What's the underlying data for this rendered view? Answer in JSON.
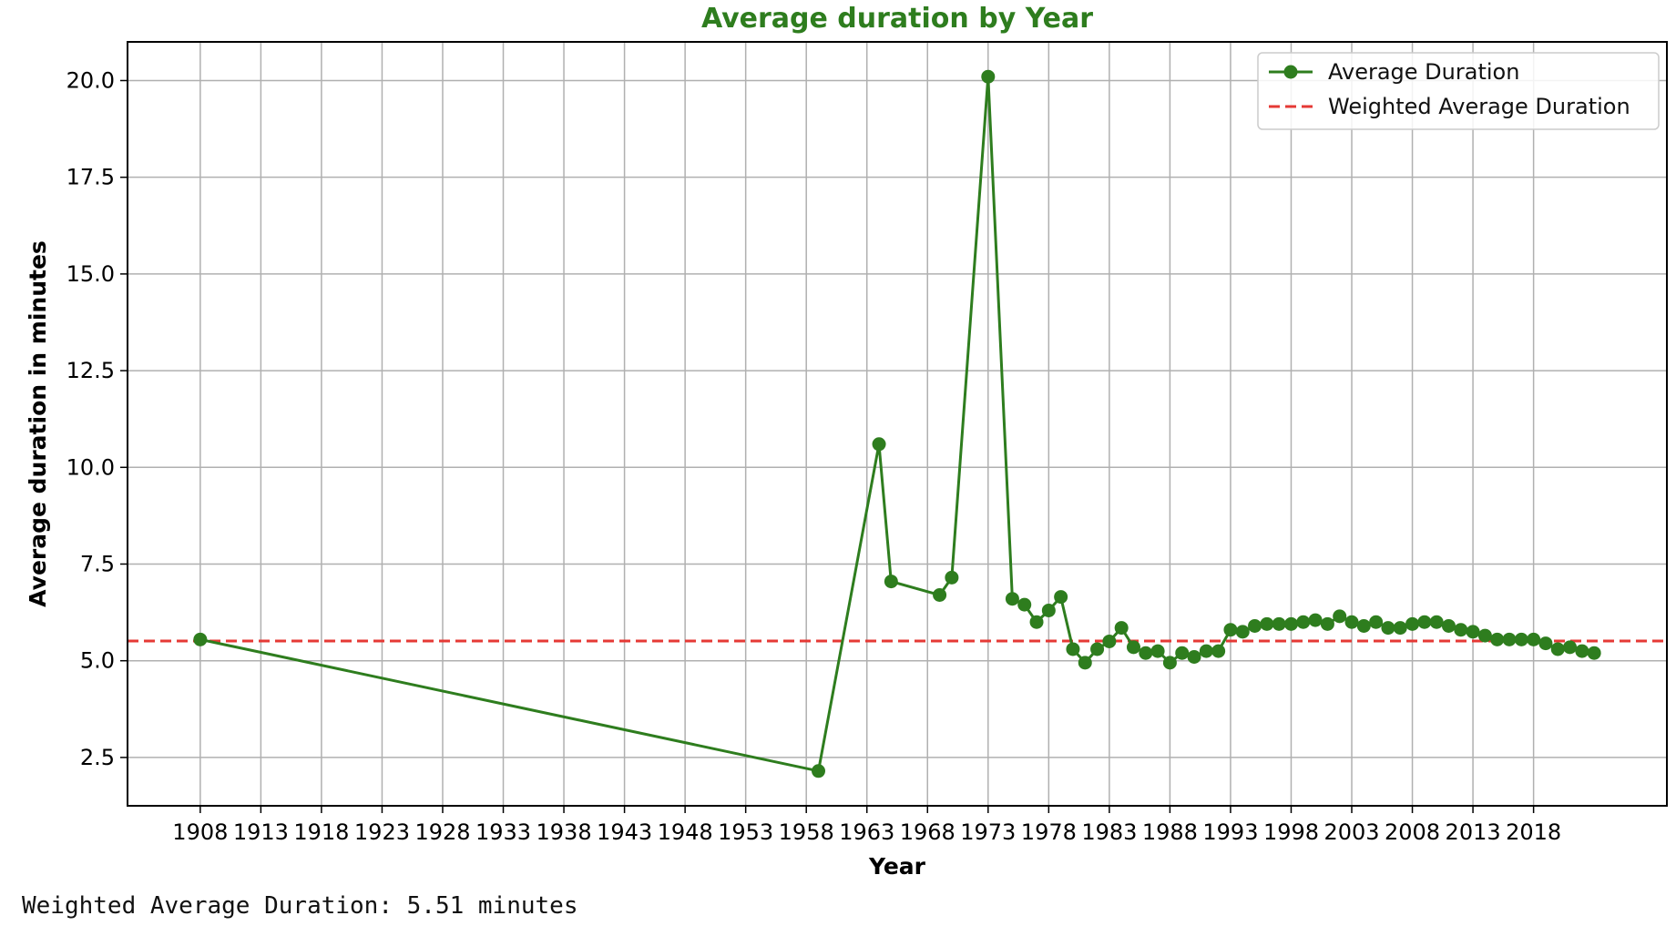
{
  "chart_data": {
    "type": "line",
    "title": "Average duration by Year",
    "xlabel": "Year",
    "ylabel": "Average duration in minutes",
    "xlim": [
      1902,
      2029
    ],
    "ylim": [
      1.25,
      21.0
    ],
    "grid": true,
    "legend_position": "top-right",
    "x_ticks": [
      1908,
      1913,
      1918,
      1923,
      1928,
      1933,
      1938,
      1943,
      1948,
      1953,
      1958,
      1963,
      1968,
      1973,
      1978,
      1983,
      1988,
      1993,
      1998,
      2003,
      2008,
      2013,
      2018
    ],
    "x_tick_labels": [
      "1908",
      "1913",
      "1918",
      "1923",
      "1928",
      "1933",
      "1938",
      "1943",
      "1948",
      "1953",
      "1958",
      "1963",
      "1968",
      "1973",
      "1978",
      "1983",
      "1988",
      "1993",
      "1998",
      "2003",
      "2008",
      "2013",
      "2018"
    ],
    "y_ticks": [
      2.5,
      5.0,
      7.5,
      10.0,
      12.5,
      15.0,
      17.5,
      20.0
    ],
    "y_tick_labels": [
      "2.5",
      "5.0",
      "7.5",
      "10.0",
      "12.5",
      "15.0",
      "17.5",
      "20.0"
    ],
    "series": [
      {
        "name": "Average Duration",
        "color": "#2e7d1e",
        "marker": "circle",
        "x": [
          1908,
          1959,
          1964,
          1965,
          1969,
          1970,
          1973,
          1975,
          1976,
          1977,
          1978,
          1979,
          1980,
          1981,
          1982,
          1983,
          1984,
          1985,
          1986,
          1987,
          1988,
          1989,
          1990,
          1991,
          1992,
          1993,
          1994,
          1995,
          1996,
          1997,
          1998,
          1999,
          2000,
          2001,
          2002,
          2003,
          2004,
          2005,
          2006,
          2007,
          2008,
          2009,
          2010,
          2011,
          2012,
          2013,
          2014,
          2015,
          2016,
          2017,
          2018,
          2019,
          2020,
          2021,
          2022,
          2023
        ],
        "y": [
          5.55,
          2.15,
          10.6,
          7.05,
          6.7,
          7.15,
          20.1,
          6.6,
          6.45,
          6.0,
          6.3,
          6.65,
          5.3,
          4.95,
          5.3,
          5.5,
          5.85,
          5.35,
          5.2,
          5.25,
          4.95,
          5.2,
          5.1,
          5.25,
          5.25,
          5.8,
          5.75,
          5.9,
          5.95,
          5.95,
          5.95,
          6.0,
          6.05,
          5.95,
          6.15,
          6.0,
          5.9,
          6.0,
          5.85,
          5.85,
          5.95,
          6.0,
          6.0,
          5.9,
          5.8,
          5.75,
          5.65,
          5.55,
          5.55,
          5.55,
          5.55,
          5.45,
          5.3,
          5.35,
          5.25,
          5.2
        ]
      },
      {
        "name": "Weighted Average Duration",
        "color": "#e53935",
        "style": "dashed",
        "y": 5.51
      }
    ]
  },
  "output_text": "Weighted Average Duration: 5.51 minutes"
}
